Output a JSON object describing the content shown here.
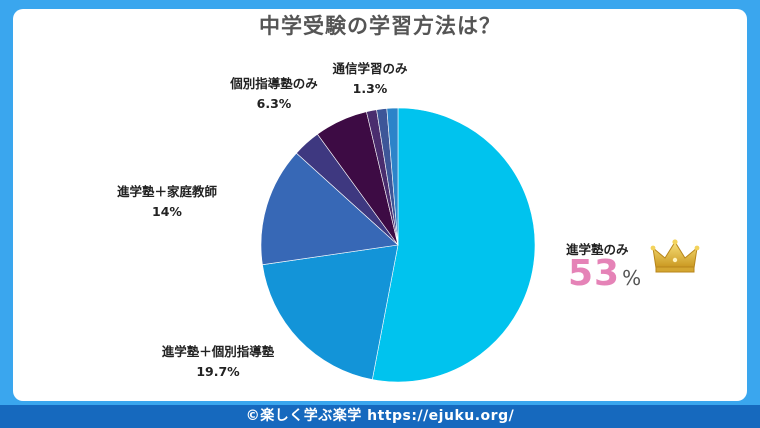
{
  "title": "中学受験の学習方法は？",
  "footer": "©楽しく学ぶ楽学 https://ejuku.org/",
  "highlight_icon": "crown-icon",
  "chart_data": {
    "type": "pie",
    "title": "中学受験の学習方法は？",
    "start_angle_deg": 0,
    "direction": "clockwise",
    "slices": [
      {
        "label": "進学塾のみ",
        "value": 53,
        "display": "53",
        "color": "#00c3ee"
      },
      {
        "label": "進学塾＋個別指導塾",
        "value": 19.7,
        "display": "19.7%",
        "color": "#1394d8"
      },
      {
        "label": "進学塾＋家庭教師",
        "value": 14,
        "display": "14%",
        "color": "#3768b6"
      },
      {
        "label": "",
        "value": 3.3,
        "display": "",
        "color": "#3e3880"
      },
      {
        "label": "個別指導塾のみ",
        "value": 6.3,
        "display": "6.3%",
        "color": "#3d0b44"
      },
      {
        "label": "",
        "value": 1.2,
        "display": "",
        "color": "#4a2d6e"
      },
      {
        "label": "",
        "value": 1.2,
        "display": "",
        "color": "#3d5698"
      },
      {
        "label": "通信学習のみ",
        "value": 1.3,
        "display": "1.3%",
        "color": "#2c84c9"
      }
    ],
    "percent_sign": "%"
  }
}
